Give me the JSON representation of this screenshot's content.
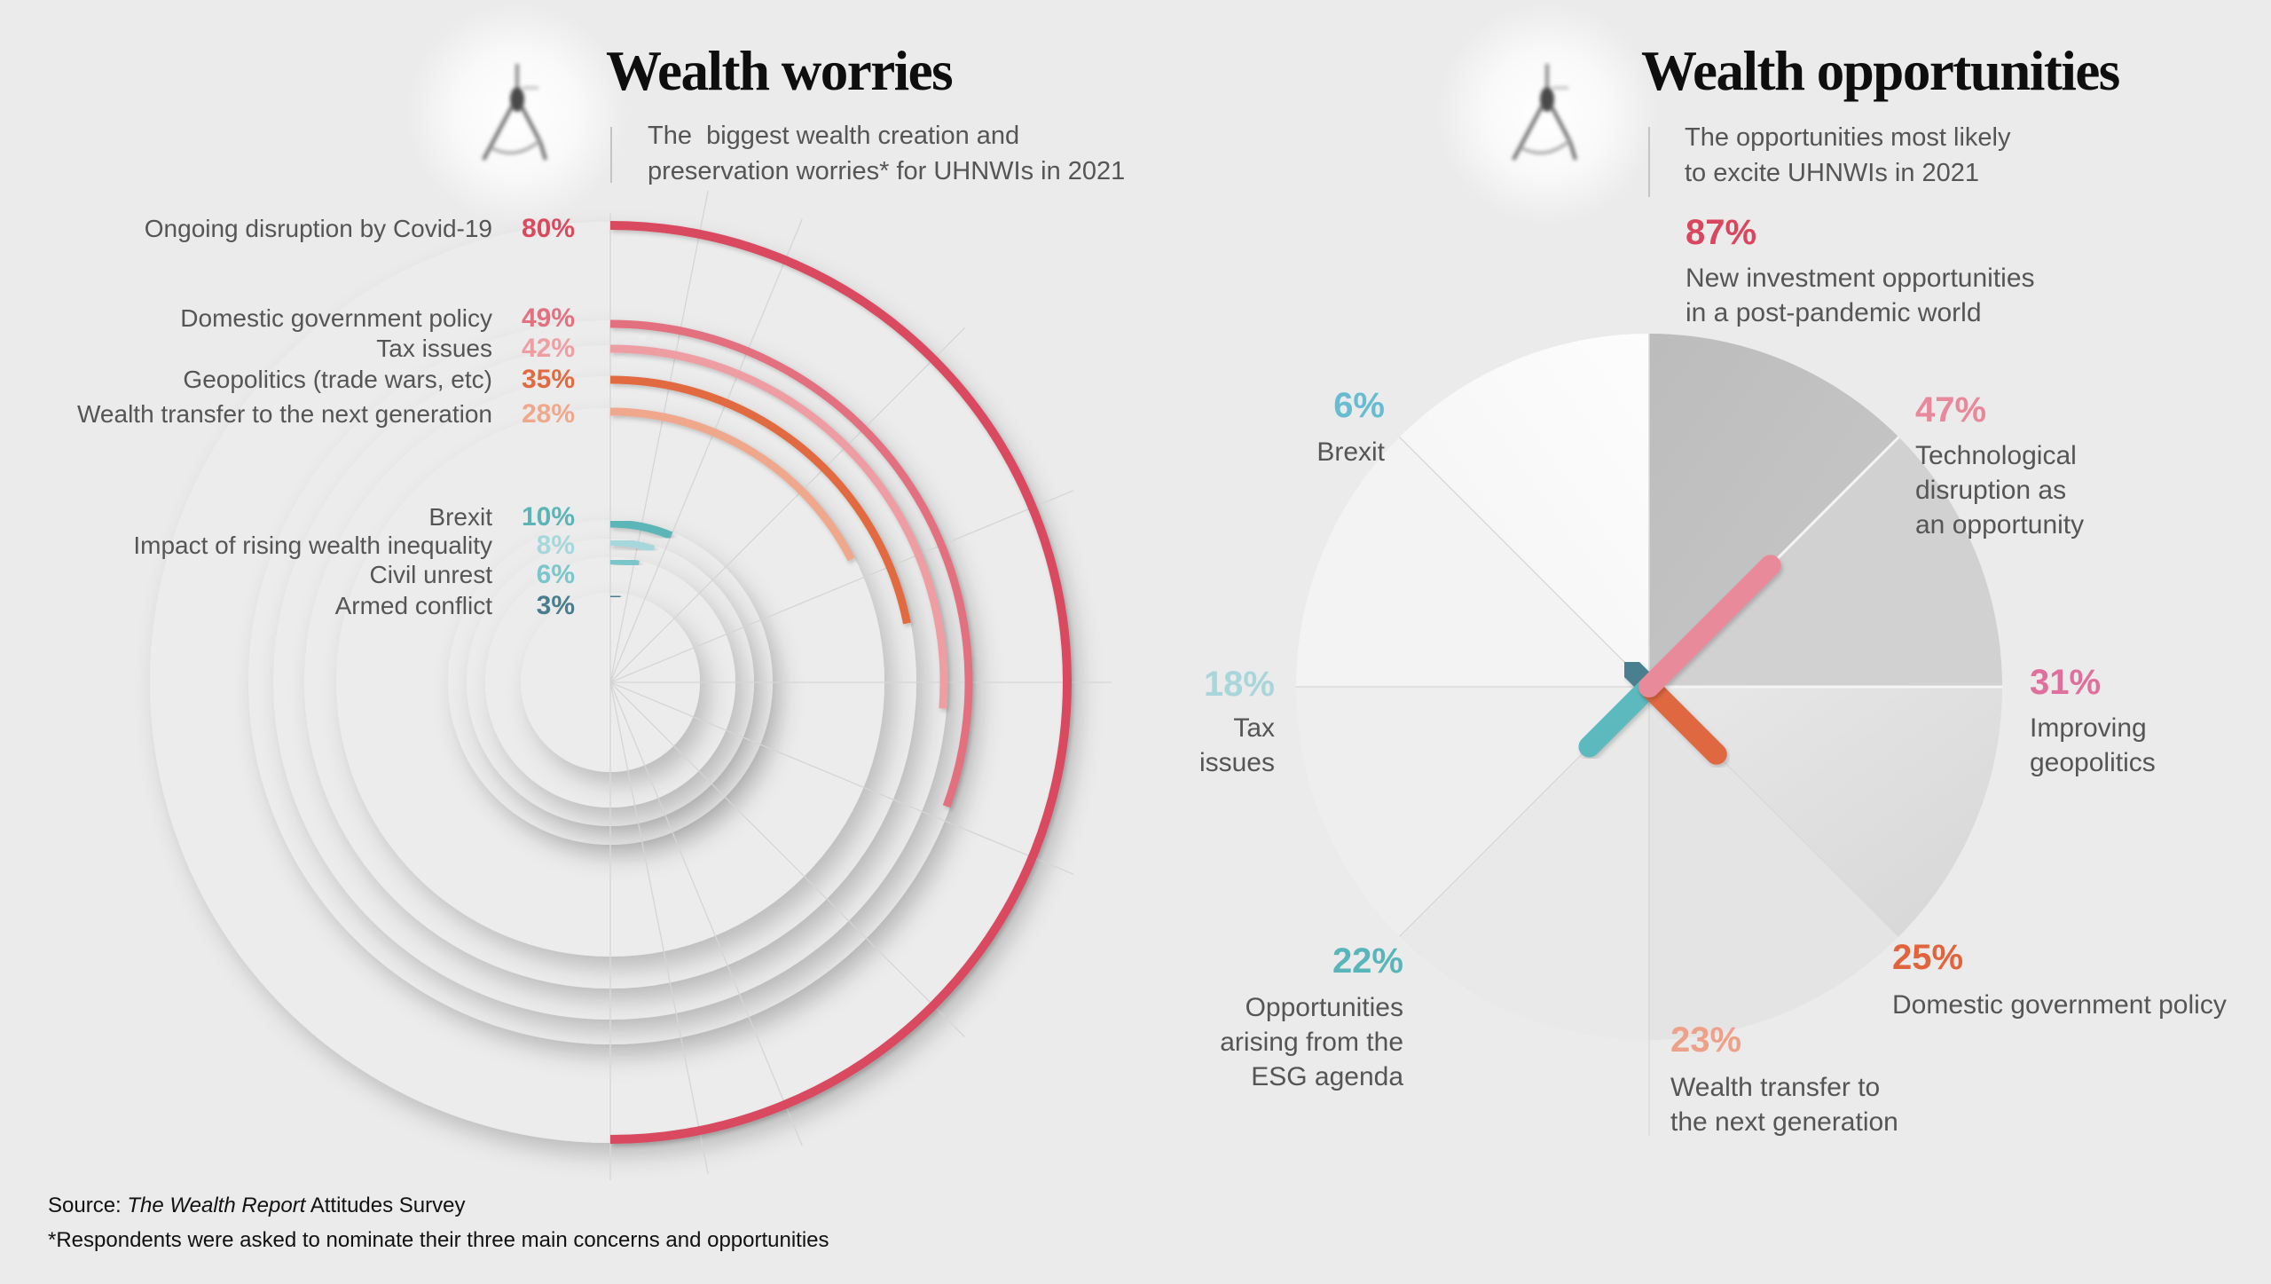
{
  "background": "#ebebeb",
  "icons": {
    "left_panel": "compass-icon",
    "right_panel": "compass-icon"
  },
  "footer": {
    "source_prefix": "Source: ",
    "source_title": "The Wealth Report",
    "source_suffix": " Attitudes Survey",
    "note": "*Respondents were asked to nominate their three main concerns and opportunities"
  },
  "chart_data": [
    {
      "type": "bar",
      "title": "Wealth worries",
      "subtitle_lines": [
        "The  biggest wealth creation and",
        "preservation worries* for UHNWIs in 2021"
      ],
      "categories": [
        "Ongoing disruption by Covid-19",
        "Domestic government policy",
        "Tax issues",
        "Geopolitics (trade wars, etc)",
        "Wealth transfer to the next generation",
        "Brexit",
        "Impact of rising wealth inequality",
        "Civil unrest",
        "Armed conflict"
      ],
      "values": [
        80,
        49,
        42,
        35,
        28,
        10,
        8,
        6,
        3
      ],
      "value_labels": [
        "80%",
        "49%",
        "42%",
        "35%",
        "28%",
        "10%",
        "8%",
        "6%",
        "3%"
      ],
      "ylim": [
        0,
        100
      ],
      "colors": [
        "#d94a5f",
        "#e3707f",
        "#ee9ea3",
        "#e26a40",
        "#f0a88c",
        "#5bb5b7",
        "#a6d7dd",
        "#7ac6cb",
        "#487d8e"
      ]
    },
    {
      "type": "bar",
      "title": "Wealth opportunities",
      "subtitle_lines": [
        "The opportunities most likely",
        "to excite UHNWIs in 2021"
      ],
      "categories": [
        [
          "New investment opportunities",
          "in a post-pandemic world"
        ],
        [
          "Technological",
          "disruption as",
          "an opportunity"
        ],
        [
          "Improving",
          "geopolitics"
        ],
        [
          "Domestic government policy"
        ],
        [
          "Wealth transfer to",
          "the next generation"
        ],
        [
          "Opportunities",
          "arising from the",
          "ESG agenda"
        ],
        [
          "Tax",
          "issues"
        ],
        [
          "Brexit"
        ]
      ],
      "values": [
        87,
        47,
        31,
        25,
        23,
        22,
        18,
        6
      ],
      "value_labels": [
        "87%",
        "47%",
        "31%",
        "25%",
        "23%",
        "22%",
        "18%",
        "6%"
      ],
      "ylim": [
        0,
        100
      ],
      "colors": [
        "#d9475e",
        "#e88a9a",
        "#e0779f",
        "#e0683f",
        "#eea28a",
        "#5cb9bd",
        "#aad7dd",
        "#4a7f8f"
      ],
      "label_colors": [
        "#d8475d",
        "#e8889b",
        "#df6f9c",
        "#e0653d",
        "#eea189",
        "#58b6bb",
        "#a8d6db",
        "#68bcd2"
      ]
    }
  ]
}
